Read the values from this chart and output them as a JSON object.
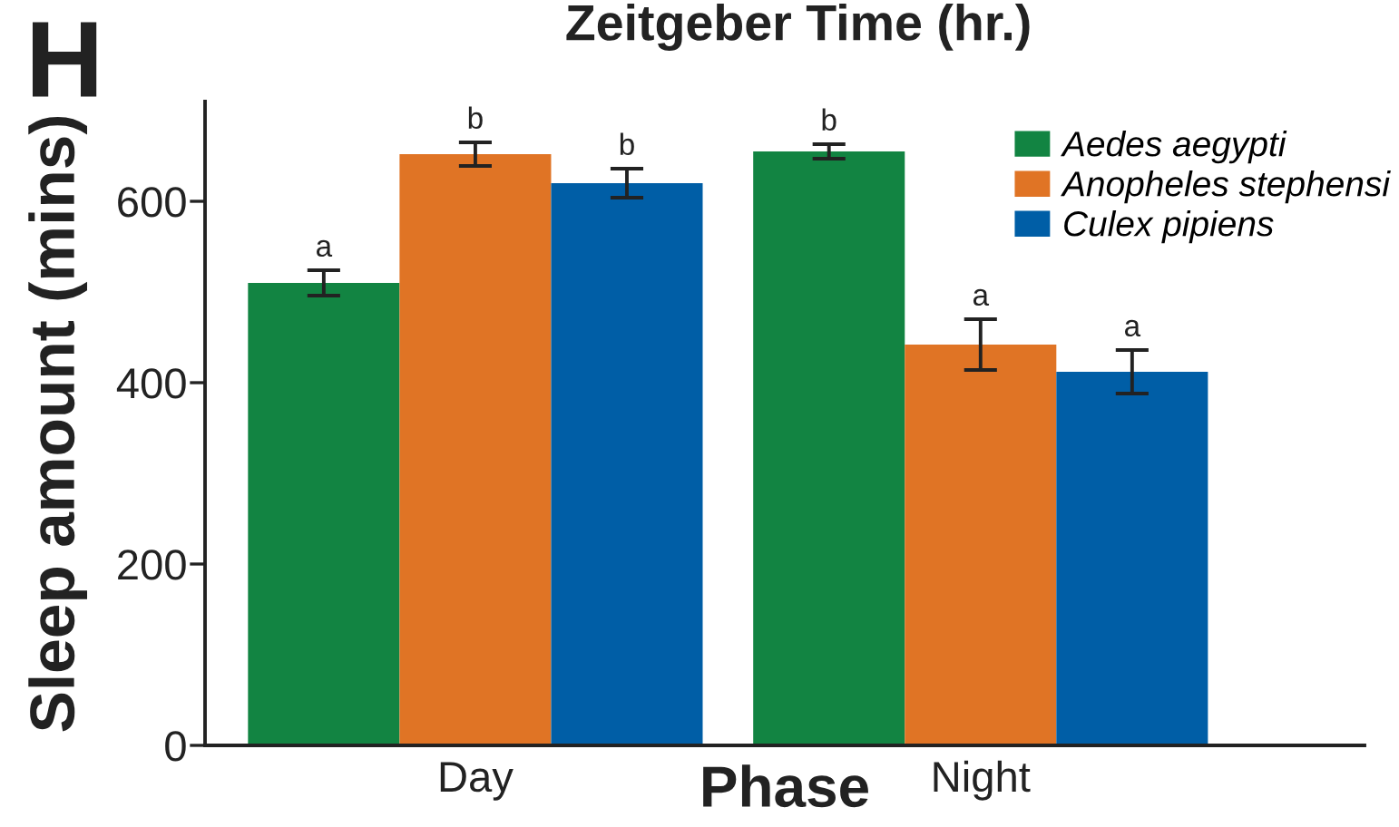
{
  "chart_data": {
    "type": "bar",
    "ylabel": "Sleep amount (mins)",
    "xlabel": "Phase",
    "categories": [
      "Day",
      "Night"
    ],
    "series": [
      {
        "name": "Aedes aegypti",
        "color": "#128442",
        "values": [
          510,
          655
        ],
        "errors": [
          14,
          8
        ],
        "value_labels": [
          "a",
          "b"
        ]
      },
      {
        "name": "Anopheles stephensi",
        "color": "#e07425",
        "values": [
          652,
          442
        ],
        "errors": [
          13,
          28
        ],
        "value_labels": [
          "b",
          "a"
        ]
      },
      {
        "name": "Culex pipiens",
        "color": "#005ea6",
        "values": [
          620,
          412
        ],
        "errors": [
          16,
          24
        ],
        "value_labels": [
          "b",
          "a"
        ]
      }
    ],
    "ylim": [
      0,
      710
    ],
    "yticks": [
      0,
      200,
      400,
      600
    ],
    "grid": false,
    "legend": "top right",
    "annotations": [
      "H",
      "Zeitgeber Time (hr.)"
    ]
  }
}
